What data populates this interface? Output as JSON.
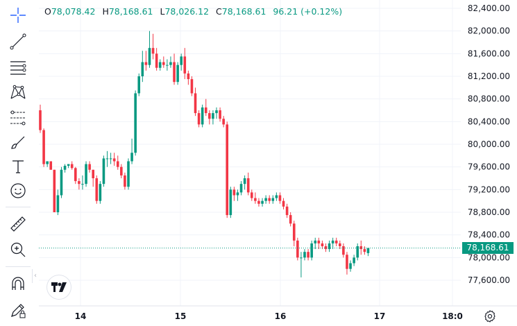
{
  "legend": {
    "open_label": "O",
    "open_value": "78,078.42",
    "high_label": "H",
    "high_value": "78,168.61",
    "low_label": "L",
    "low_value": "78,026.12",
    "close_label": "C",
    "close_value": "78,168.61",
    "change": "96.21 (+0.12%)"
  },
  "toolbar": {
    "tools": [
      "crosshair-icon",
      "trend-line-icon",
      "horizontal-lines-icon",
      "pattern-icon",
      "fib-icon",
      "brush-icon",
      "text-icon",
      "emoji-icon",
      "ruler-icon",
      "zoom-icon",
      "magnet-icon",
      "lock-draw-icon"
    ]
  },
  "price_tag": "78,168.61",
  "colors": {
    "up": "#089981",
    "down": "#F23645",
    "grid": "#f0f3fa",
    "text": "#131722"
  },
  "chart_data": {
    "type": "candlestick",
    "y_ticks": [
      "82,400.00",
      "82,000.00",
      "81,600.00",
      "81,200.00",
      "80,800.00",
      "80,400.00",
      "80,000.00",
      "79,600.00",
      "79,200.00",
      "78,800.00",
      "78,400.00",
      "78,000.00",
      "77,600.00"
    ],
    "y_tick_values": [
      82400,
      82000,
      81600,
      81200,
      80800,
      80400,
      80000,
      79600,
      79200,
      78800,
      78400,
      78000,
      77600
    ],
    "x_ticks": [
      "14",
      "15",
      "16",
      "17",
      "18:0"
    ],
    "ylim": [
      77200,
      82600
    ],
    "last_price": 78168.61,
    "candles": [
      [
        80600,
        80700,
        80200,
        80250
      ],
      [
        80250,
        80280,
        79600,
        79650
      ],
      [
        79650,
        79700,
        79600,
        79700
      ],
      [
        79700,
        79700,
        79550,
        79550
      ],
      [
        79550,
        79550,
        78800,
        78800
      ],
      [
        78800,
        79200,
        78750,
        79100
      ],
      [
        79100,
        79600,
        79050,
        79550
      ],
      [
        79550,
        79650,
        79500,
        79620
      ],
      [
        79620,
        79650,
        79580,
        79650
      ],
      [
        79650,
        79700,
        79550,
        79580
      ],
      [
        79580,
        79600,
        79300,
        79350
      ],
      [
        79350,
        79400,
        79200,
        79300
      ],
      [
        79300,
        79450,
        79200,
        79300
      ],
      [
        79300,
        79700,
        79250,
        79650
      ],
      [
        79650,
        79700,
        79500,
        79550
      ],
      [
        79550,
        79550,
        79250,
        79400
      ],
      [
        79400,
        79450,
        78950,
        79000
      ],
      [
        79000,
        79350,
        78950,
        79300
      ],
      [
        79300,
        79800,
        79250,
        79750
      ],
      [
        79750,
        79880,
        79600,
        79750
      ],
      [
        79750,
        79850,
        79650,
        79750
      ],
      [
        79750,
        79850,
        79620,
        79700
      ],
      [
        79700,
        79800,
        79550,
        79600
      ],
      [
        79600,
        79650,
        79400,
        79450
      ],
      [
        79450,
        79500,
        79200,
        79250
      ],
      [
        79250,
        79750,
        79200,
        79700
      ],
      [
        79700,
        80100,
        79650,
        79850
      ],
      [
        79850,
        80950,
        79800,
        80900
      ],
      [
        80900,
        81250,
        80850,
        81200
      ],
      [
        81200,
        81650,
        81100,
        81450
      ],
      [
        81450,
        81650,
        81300,
        81400
      ],
      [
        81400,
        82000,
        81350,
        81700
      ],
      [
        81700,
        81950,
        81500,
        81600
      ],
      [
        81600,
        81700,
        81300,
        81350
      ],
      [
        81350,
        81500,
        81300,
        81450
      ],
      [
        81450,
        81550,
        81350,
        81400
      ],
      [
        81400,
        81500,
        81300,
        81400
      ],
      [
        81400,
        81550,
        81350,
        81450
      ],
      [
        81450,
        81600,
        81050,
        81100
      ],
      [
        81100,
        81450,
        81050,
        81400
      ],
      [
        81400,
        81600,
        81300,
        81550
      ],
      [
        81550,
        81700,
        81150,
        81250
      ],
      [
        81250,
        81300,
        81050,
        81150
      ],
      [
        81150,
        81200,
        80850,
        80900
      ],
      [
        80900,
        81000,
        80500,
        80550
      ],
      [
        80550,
        80600,
        80300,
        80350
      ],
      [
        80350,
        80700,
        80300,
        80650
      ],
      [
        80650,
        80800,
        80500,
        80550
      ],
      [
        80550,
        80600,
        80350,
        80450
      ],
      [
        80450,
        80600,
        80350,
        80550
      ],
      [
        80550,
        80650,
        80450,
        80600
      ],
      [
        80600,
        80650,
        80400,
        80450
      ],
      [
        80450,
        80500,
        80300,
        80350
      ],
      [
        80350,
        80400,
        78700,
        78750
      ],
      [
        78750,
        79250,
        78700,
        79200
      ],
      [
        79200,
        79250,
        79000,
        79100
      ],
      [
        79100,
        79200,
        79000,
        79150
      ],
      [
        79150,
        79350,
        79100,
        79300
      ],
      [
        79300,
        79450,
        79200,
        79400
      ],
      [
        79400,
        79500,
        79100,
        79150
      ],
      [
        79150,
        79200,
        79000,
        79050
      ],
      [
        79050,
        79150,
        78950,
        79000
      ],
      [
        79000,
        79050,
        78900,
        78950
      ],
      [
        78950,
        79050,
        78900,
        79000
      ],
      [
        79000,
        79100,
        78950,
        79050
      ],
      [
        79050,
        79100,
        78950,
        79000
      ],
      [
        79000,
        79100,
        78950,
        79050
      ],
      [
        79050,
        79150,
        79000,
        79100
      ],
      [
        79100,
        79150,
        78950,
        79000
      ],
      [
        79000,
        79050,
        78850,
        78900
      ],
      [
        78900,
        78950,
        78700,
        78750
      ],
      [
        78750,
        78800,
        78550,
        78600
      ],
      [
        78600,
        78650,
        78200,
        78300
      ],
      [
        78300,
        78350,
        77950,
        78000
      ],
      [
        78000,
        78100,
        77650,
        78000
      ],
      [
        78000,
        78150,
        77950,
        78100
      ],
      [
        78100,
        78150,
        77950,
        78000
      ],
      [
        78000,
        78300,
        77950,
        78250
      ],
      [
        78250,
        78350,
        78150,
        78300
      ],
      [
        78300,
        78350,
        78150,
        78250
      ],
      [
        78250,
        78300,
        78150,
        78200
      ],
      [
        78200,
        78250,
        78100,
        78150
      ],
      [
        78150,
        78300,
        78100,
        78250
      ],
      [
        78250,
        78350,
        78150,
        78300
      ],
      [
        78300,
        78350,
        78200,
        78250
      ],
      [
        78250,
        78300,
        78150,
        78200
      ],
      [
        78200,
        78250,
        78000,
        78050
      ],
      [
        78050,
        78100,
        77700,
        77800
      ],
      [
        77800,
        77950,
        77750,
        77900
      ],
      [
        77900,
        78050,
        77850,
        78000
      ],
      [
        78000,
        78250,
        77950,
        78200
      ],
      [
        78200,
        78300,
        78050,
        78150
      ],
      [
        78150,
        78200,
        78050,
        78100
      ],
      [
        78078.42,
        78168.61,
        78026.12,
        78168.61
      ]
    ]
  }
}
